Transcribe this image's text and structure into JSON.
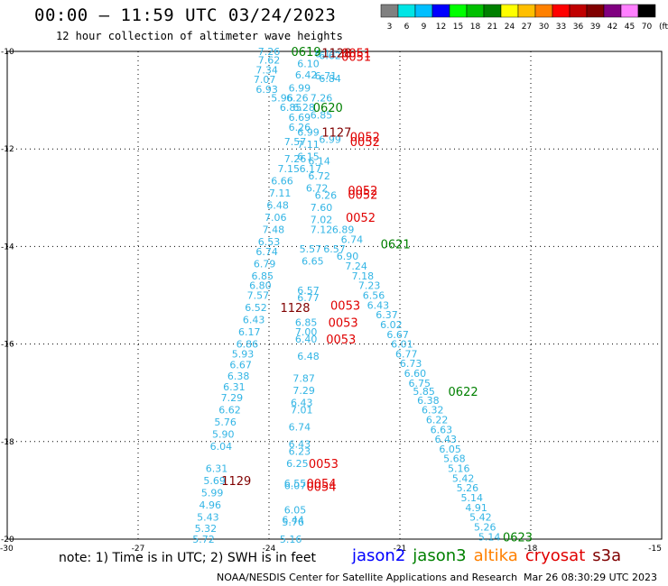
{
  "header": {
    "title": "00:00 — 11:59 UTC 03/24/2023",
    "subtitle": "12 hour collection of altimeter wave heights"
  },
  "scale": {
    "labels": [
      "3",
      "6",
      "9",
      "12",
      "15",
      "18",
      "21",
      "24",
      "27",
      "30",
      "33",
      "36",
      "39",
      "42",
      "45",
      "70"
    ],
    "unit": "(ft)",
    "colors": [
      "#808080",
      "#00e5e5",
      "#00bfff",
      "#0000ff",
      "#00ff00",
      "#00c000",
      "#008000",
      "#ffff00",
      "#ffbf00",
      "#ff8000",
      "#ff0000",
      "#c00000",
      "#800000",
      "#800080",
      "#ff80ff",
      "#000000"
    ]
  },
  "axes": {
    "lat_labels": [
      "-10",
      "-12",
      "-14",
      "-16",
      "-18",
      "-20"
    ],
    "lon_labels": [
      "-30",
      "-27",
      "-24",
      "-21",
      "-18",
      "-15"
    ]
  },
  "map_data": {
    "wave_labels": [
      {
        "t": "7.26",
        "lon": -24.0,
        "lat": -10.0,
        "c": "#33b5e5"
      },
      {
        "t": "7.62",
        "lon": -24.0,
        "lat": -10.18,
        "c": "#33b5e5"
      },
      {
        "t": "7.34",
        "lon": -24.05,
        "lat": -10.38,
        "c": "#33b5e5"
      },
      {
        "t": "7.07",
        "lon": -24.1,
        "lat": -10.57,
        "c": "#33b5e5"
      },
      {
        "t": "6.93",
        "lon": -24.05,
        "lat": -10.78,
        "c": "#33b5e5"
      },
      {
        "t": "6.10",
        "lon": -23.1,
        "lat": -10.25,
        "c": "#33b5e5"
      },
      {
        "t": "6.42",
        "lon": -23.15,
        "lat": -10.48,
        "c": "#33b5e5"
      },
      {
        "t": "6.99",
        "lon": -23.3,
        "lat": -10.75,
        "c": "#33b5e5"
      },
      {
        "t": "6.11",
        "lon": -22.7,
        "lat": -10.05,
        "c": "#33b5e5"
      },
      {
        "t": "6.62",
        "lon": -22.6,
        "lat": -10.08,
        "c": "#33b5e5"
      },
      {
        "t": "6.71",
        "lon": -22.7,
        "lat": -10.5,
        "c": "#33b5e5"
      },
      {
        "t": "6.84",
        "lon": -22.6,
        "lat": -10.55,
        "c": "#33b5e5"
      },
      {
        "t": "5.96",
        "lon": -23.7,
        "lat": -10.95,
        "c": "#33b5e5"
      },
      {
        "t": "6.26",
        "lon": -23.35,
        "lat": -10.95,
        "c": "#33b5e5"
      },
      {
        "t": "7.26",
        "lon": -22.8,
        "lat": -10.95,
        "c": "#33b5e5"
      },
      {
        "t": "6.85",
        "lon": -23.5,
        "lat": -11.15,
        "c": "#33b5e5"
      },
      {
        "t": "6.28",
        "lon": -23.2,
        "lat": -11.15,
        "c": "#33b5e5"
      },
      {
        "t": "6.85",
        "lon": -22.8,
        "lat": -11.3,
        "c": "#33b5e5"
      },
      {
        "t": "6.69",
        "lon": -23.3,
        "lat": -11.35,
        "c": "#33b5e5"
      },
      {
        "t": "6.26",
        "lon": -23.3,
        "lat": -11.55,
        "c": "#33b5e5"
      },
      {
        "t": "6.99",
        "lon": -23.1,
        "lat": -11.65,
        "c": "#33b5e5"
      },
      {
        "t": "7.57",
        "lon": -23.4,
        "lat": -11.85,
        "c": "#33b5e5"
      },
      {
        "t": "7.11",
        "lon": -23.1,
        "lat": -11.9,
        "c": "#33b5e5"
      },
      {
        "t": "6.99",
        "lon": -22.6,
        "lat": -11.8,
        "c": "#33b5e5"
      },
      {
        "t": "7.26",
        "lon": -23.4,
        "lat": -12.2,
        "c": "#33b5e5"
      },
      {
        "t": "6.15",
        "lon": -23.1,
        "lat": -12.15,
        "c": "#33b5e5"
      },
      {
        "t": "6.14",
        "lon": -22.85,
        "lat": -12.25,
        "c": "#33b5e5"
      },
      {
        "t": "7.15",
        "lon": -23.55,
        "lat": -12.4,
        "c": "#33b5e5"
      },
      {
        "t": "6.17",
        "lon": -23.05,
        "lat": -12.4,
        "c": "#33b5e5"
      },
      {
        "t": "6.66",
        "lon": -23.7,
        "lat": -12.65,
        "c": "#33b5e5"
      },
      {
        "t": "6.72",
        "lon": -22.85,
        "lat": -12.55,
        "c": "#33b5e5"
      },
      {
        "t": "7.11",
        "lon": -23.75,
        "lat": -12.9,
        "c": "#33b5e5"
      },
      {
        "t": "6.72",
        "lon": -22.9,
        "lat": -12.8,
        "c": "#33b5e5"
      },
      {
        "t": "6.26",
        "lon": -22.7,
        "lat": -12.95,
        "c": "#33b5e5"
      },
      {
        "t": "6.48",
        "lon": -23.8,
        "lat": -13.15,
        "c": "#33b5e5"
      },
      {
        "t": "7.60",
        "lon": -22.8,
        "lat": -13.2,
        "c": "#33b5e5"
      },
      {
        "t": "7.06",
        "lon": -23.85,
        "lat": -13.4,
        "c": "#33b5e5"
      },
      {
        "t": "7.02",
        "lon": -22.8,
        "lat": -13.45,
        "c": "#33b5e5"
      },
      {
        "t": "7.48",
        "lon": -23.9,
        "lat": -13.65,
        "c": "#33b5e5"
      },
      {
        "t": "7.12",
        "lon": -22.8,
        "lat": -13.65,
        "c": "#33b5e5"
      },
      {
        "t": "6.89",
        "lon": -22.3,
        "lat": -13.65,
        "c": "#33b5e5"
      },
      {
        "t": "6.53",
        "lon": -24.0,
        "lat": -13.9,
        "c": "#33b5e5"
      },
      {
        "t": "6.74",
        "lon": -22.1,
        "lat": -13.85,
        "c": "#33b5e5"
      },
      {
        "t": "6.74",
        "lon": -24.05,
        "lat": -14.1,
        "c": "#33b5e5"
      },
      {
        "t": "5.57",
        "lon": -23.05,
        "lat": -14.05,
        "c": "#33b5e5"
      },
      {
        "t": "6.57",
        "lon": -22.5,
        "lat": -14.05,
        "c": "#33b5e5"
      },
      {
        "t": "6.79",
        "lon": -24.1,
        "lat": -14.35,
        "c": "#33b5e5"
      },
      {
        "t": "6.65",
        "lon": -23.0,
        "lat": -14.3,
        "c": "#33b5e5"
      },
      {
        "t": "6.90",
        "lon": -22.2,
        "lat": -14.2,
        "c": "#33b5e5"
      },
      {
        "t": "7.24",
        "lon": -22.0,
        "lat": -14.4,
        "c": "#33b5e5"
      },
      {
        "t": "6.85",
        "lon": -24.15,
        "lat": -14.6,
        "c": "#33b5e5"
      },
      {
        "t": "7.18",
        "lon": -21.85,
        "lat": -14.6,
        "c": "#33b5e5"
      },
      {
        "t": "6.80",
        "lon": -24.2,
        "lat": -14.8,
        "c": "#33b5e5"
      },
      {
        "t": "7.23",
        "lon": -21.7,
        "lat": -14.8,
        "c": "#33b5e5"
      },
      {
        "t": "6.57",
        "lon": -23.1,
        "lat": -14.9,
        "c": "#33b5e5"
      },
      {
        "t": "7.57",
        "lon": -24.25,
        "lat": -15.0,
        "c": "#33b5e5"
      },
      {
        "t": "6.77",
        "lon": -23.1,
        "lat": -15.05,
        "c": "#33b5e5"
      },
      {
        "t": "6.56",
        "lon": -21.6,
        "lat": -15.0,
        "c": "#33b5e5"
      },
      {
        "t": "6.52",
        "lon": -24.3,
        "lat": -15.25,
        "c": "#33b5e5"
      },
      {
        "t": "6.43",
        "lon": -21.5,
        "lat": -15.2,
        "c": "#33b5e5"
      },
      {
        "t": "6.37",
        "lon": -21.3,
        "lat": -15.4,
        "c": "#33b5e5"
      },
      {
        "t": "6.43",
        "lon": -24.35,
        "lat": -15.5,
        "c": "#33b5e5"
      },
      {
        "t": "6.85",
        "lon": -23.15,
        "lat": -15.55,
        "c": "#33b5e5"
      },
      {
        "t": "6.02",
        "lon": -21.2,
        "lat": -15.6,
        "c": "#33b5e5"
      },
      {
        "t": "7.00",
        "lon": -23.15,
        "lat": -15.75,
        "c": "#33b5e5"
      },
      {
        "t": "6.17",
        "lon": -24.45,
        "lat": -15.75,
        "c": "#33b5e5"
      },
      {
        "t": "6.67",
        "lon": -21.05,
        "lat": -15.8,
        "c": "#33b5e5"
      },
      {
        "t": "6.40",
        "lon": -23.15,
        "lat": -15.9,
        "c": "#33b5e5"
      },
      {
        "t": "6.86",
        "lon": -24.5,
        "lat": -16.0,
        "c": "#33b5e5"
      },
      {
        "t": "6.01",
        "lon": -20.95,
        "lat": -16.0,
        "c": "#33b5e5"
      },
      {
        "t": "5.93",
        "lon": -24.6,
        "lat": -16.2,
        "c": "#33b5e5"
      },
      {
        "t": "6.77",
        "lon": -20.85,
        "lat": -16.2,
        "c": "#33b5e5"
      },
      {
        "t": "6.48",
        "lon": -23.1,
        "lat": -16.25,
        "c": "#33b5e5"
      },
      {
        "t": "6.67",
        "lon": -24.65,
        "lat": -16.42,
        "c": "#33b5e5"
      },
      {
        "t": "6.73",
        "lon": -20.75,
        "lat": -16.4,
        "c": "#33b5e5"
      },
      {
        "t": "6.38",
        "lon": -24.7,
        "lat": -16.65,
        "c": "#33b5e5"
      },
      {
        "t": "6.60",
        "lon": -20.65,
        "lat": -16.6,
        "c": "#33b5e5"
      },
      {
        "t": "7.87",
        "lon": -23.2,
        "lat": -16.7,
        "c": "#33b5e5"
      },
      {
        "t": "6.75",
        "lon": -20.55,
        "lat": -16.8,
        "c": "#33b5e5"
      },
      {
        "t": "6.31",
        "lon": -24.8,
        "lat": -16.88,
        "c": "#33b5e5"
      },
      {
        "t": "7.29",
        "lon": -23.2,
        "lat": -16.95,
        "c": "#33b5e5"
      },
      {
        "t": "5.85",
        "lon": -20.45,
        "lat": -16.97,
        "c": "#33b5e5"
      },
      {
        "t": "7.29",
        "lon": -24.85,
        "lat": -17.1,
        "c": "#33b5e5"
      },
      {
        "t": "6.38",
        "lon": -20.35,
        "lat": -17.15,
        "c": "#33b5e5"
      },
      {
        "t": "6.43",
        "lon": -23.25,
        "lat": -17.2,
        "c": "#33b5e5"
      },
      {
        "t": "7.01",
        "lon": -23.25,
        "lat": -17.35,
        "c": "#33b5e5"
      },
      {
        "t": "6.62",
        "lon": -24.9,
        "lat": -17.35,
        "c": "#33b5e5"
      },
      {
        "t": "6.32",
        "lon": -20.25,
        "lat": -17.35,
        "c": "#33b5e5"
      },
      {
        "t": "5.76",
        "lon": -25.0,
        "lat": -17.6,
        "c": "#33b5e5"
      },
      {
        "t": "6.22",
        "lon": -20.15,
        "lat": -17.55,
        "c": "#33b5e5"
      },
      {
        "t": "6.74",
        "lon": -23.3,
        "lat": -17.7,
        "c": "#33b5e5"
      },
      {
        "t": "6.63",
        "lon": -20.05,
        "lat": -17.75,
        "c": "#33b5e5"
      },
      {
        "t": "5.90",
        "lon": -25.05,
        "lat": -17.85,
        "c": "#33b5e5"
      },
      {
        "t": "6.43",
        "lon": -19.95,
        "lat": -17.95,
        "c": "#33b5e5"
      },
      {
        "t": "6.04",
        "lon": -25.1,
        "lat": -18.1,
        "c": "#33b5e5"
      },
      {
        "t": "6.43",
        "lon": -23.3,
        "lat": -18.05,
        "c": "#33b5e5"
      },
      {
        "t": "6.05",
        "lon": -19.85,
        "lat": -18.15,
        "c": "#33b5e5"
      },
      {
        "t": "6.23",
        "lon": -23.3,
        "lat": -18.2,
        "c": "#33b5e5"
      },
      {
        "t": "5.68",
        "lon": -19.75,
        "lat": -18.35,
        "c": "#33b5e5"
      },
      {
        "t": "6.31",
        "lon": -25.2,
        "lat": -18.55,
        "c": "#33b5e5"
      },
      {
        "t": "6.25",
        "lon": -23.35,
        "lat": -18.45,
        "c": "#33b5e5"
      },
      {
        "t": "5.16",
        "lon": -19.65,
        "lat": -18.55,
        "c": "#33b5e5"
      },
      {
        "t": "5.69",
        "lon": -25.25,
        "lat": -18.8,
        "c": "#33b5e5"
      },
      {
        "t": "6.55",
        "lon": -23.4,
        "lat": -18.85,
        "c": "#33b5e5"
      },
      {
        "t": "6.07",
        "lon": -23.4,
        "lat": -18.9,
        "c": "#33b5e5"
      },
      {
        "t": "5.42",
        "lon": -19.55,
        "lat": -18.75,
        "c": "#33b5e5"
      },
      {
        "t": "5.99",
        "lon": -25.3,
        "lat": -19.05,
        "c": "#33b5e5"
      },
      {
        "t": "5.26",
        "lon": -19.45,
        "lat": -18.95,
        "c": "#33b5e5"
      },
      {
        "t": "5.14",
        "lon": -19.35,
        "lat": -19.15,
        "c": "#33b5e5"
      },
      {
        "t": "4.96",
        "lon": -25.35,
        "lat": -19.3,
        "c": "#33b5e5"
      },
      {
        "t": "6.05",
        "lon": -23.4,
        "lat": -19.4,
        "c": "#33b5e5"
      },
      {
        "t": "4.91",
        "lon": -19.25,
        "lat": -19.35,
        "c": "#33b5e5"
      },
      {
        "t": "5.43",
        "lon": -25.4,
        "lat": -19.55,
        "c": "#33b5e5"
      },
      {
        "t": "6.44",
        "lon": -23.45,
        "lat": -19.6,
        "c": "#33b5e5"
      },
      {
        "t": "5.76",
        "lon": -23.45,
        "lat": -19.65,
        "c": "#33b5e5"
      },
      {
        "t": "5.42",
        "lon": -19.15,
        "lat": -19.55,
        "c": "#33b5e5"
      },
      {
        "t": "5.32",
        "lon": -25.45,
        "lat": -19.78,
        "c": "#33b5e5"
      },
      {
        "t": "5.26",
        "lon": -19.05,
        "lat": -19.75,
        "c": "#33b5e5"
      },
      {
        "t": "5.72",
        "lon": -25.5,
        "lat": -20.0,
        "c": "#33b5e5"
      },
      {
        "t": "5.16",
        "lon": -23.5,
        "lat": -20.0,
        "c": "#33b5e5"
      },
      {
        "t": "5.14",
        "lon": -18.95,
        "lat": -19.95,
        "c": "#33b5e5"
      }
    ],
    "time_labels": [
      {
        "t": "0619",
        "lon": -23.15,
        "lat": -10.0,
        "c": "#008000"
      },
      {
        "t": "1128",
        "lon": -22.45,
        "lat": -10.03,
        "c": "#800000"
      },
      {
        "t": "0051",
        "lon": -22.0,
        "lat": -10.03,
        "c": "#e00000"
      },
      {
        "t": "0051",
        "lon": -22.0,
        "lat": -10.1,
        "c": "#e00000"
      },
      {
        "t": "0620",
        "lon": -22.65,
        "lat": -11.15,
        "c": "#008000"
      },
      {
        "t": "1127",
        "lon": -22.45,
        "lat": -11.65,
        "c": "#800000"
      },
      {
        "t": "0052",
        "lon": -21.8,
        "lat": -11.75,
        "c": "#e00000"
      },
      {
        "t": "0052",
        "lon": -21.8,
        "lat": -11.85,
        "c": "#e00000"
      },
      {
        "t": "0052",
        "lon": -21.85,
        "lat": -12.85,
        "c": "#e00000"
      },
      {
        "t": "0052",
        "lon": -21.85,
        "lat": -12.93,
        "c": "#e00000"
      },
      {
        "t": "0052",
        "lon": -21.9,
        "lat": -13.4,
        "c": "#e00000"
      },
      {
        "t": "0621",
        "lon": -21.1,
        "lat": -13.95,
        "c": "#008000"
      },
      {
        "t": "1128",
        "lon": -23.4,
        "lat": -15.25,
        "c": "#800000"
      },
      {
        "t": "0053",
        "lon": -22.25,
        "lat": -15.2,
        "c": "#e00000"
      },
      {
        "t": "0053",
        "lon": -22.3,
        "lat": -15.55,
        "c": "#e00000"
      },
      {
        "t": "0053",
        "lon": -22.35,
        "lat": -15.9,
        "c": "#e00000"
      },
      {
        "t": "0622",
        "lon": -19.55,
        "lat": -16.97,
        "c": "#008000"
      },
      {
        "t": "0053",
        "lon": -22.75,
        "lat": -18.45,
        "c": "#e00000"
      },
      {
        "t": "1129",
        "lon": -24.75,
        "lat": -18.8,
        "c": "#800000"
      },
      {
        "t": "0054",
        "lon": -22.8,
        "lat": -18.85,
        "c": "#e00000"
      },
      {
        "t": "0054",
        "lon": -22.8,
        "lat": -18.92,
        "c": "#e00000"
      },
      {
        "t": "0623",
        "lon": -18.3,
        "lat": -19.95,
        "c": "#008000"
      }
    ]
  },
  "note": "note: 1) Time is in UTC; 2) SWH is in feet",
  "satellites": [
    {
      "name": "jason2",
      "color": "#0000ff"
    },
    {
      "name": "jason3",
      "color": "#008000"
    },
    {
      "name": "altika",
      "color": "#ff8000"
    },
    {
      "name": "cryosat",
      "color": "#e00000"
    },
    {
      "name": "s3a",
      "color": "#800000"
    }
  ],
  "footer": {
    "left": "NOAA/NESDIS Center for Satellite Applications and Research",
    "right": "Mar 26 08:30:29 UTC 2023"
  }
}
